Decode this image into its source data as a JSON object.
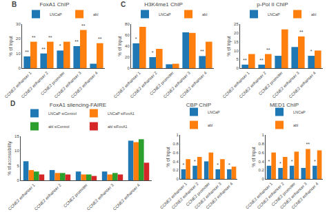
{
  "chart_data": [
    {
      "type": "bar",
      "title": "FoxA1 ChIP",
      "ylabel": "% of Input",
      "categories": [
        "CCNE2 enhancer 1",
        "CCNE2 enhancer 2",
        "CCNE2 promoter",
        "CCNE2 enhancer 3",
        "CCNE2 enhancer 4"
      ],
      "series": [
        {
          "name": "LNCaP",
          "values": [
            8,
            10,
            12,
            15,
            3
          ],
          "annotations": [
            "**",
            "**",
            "*",
            "**",
            null
          ]
        },
        {
          "name": "abl",
          "values": [
            18,
            18,
            18,
            26,
            17
          ],
          "annotations": [
            "**",
            "**",
            null,
            "**",
            "**"
          ]
        }
      ],
      "ylim": [
        0,
        30
      ],
      "yticks": [
        0,
        10,
        20,
        30
      ],
      "legend": "top",
      "annotations": [
        "B"
      ]
    },
    {
      "type": "bar",
      "title": "H3K4me1 ChIP",
      "ylabel": "% of Input",
      "categories": [
        "CCNE2 enhancer 1",
        "CCNE2 enhancer 2",
        "CCNE2 promoter",
        "CCNE2 enhancer 3",
        "CCNE2 enhancer 4"
      ],
      "series": [
        {
          "name": "LNCaP",
          "values": [
            45,
            20,
            7,
            65,
            22
          ],
          "annotations": [
            "*",
            "*",
            null,
            null,
            "**"
          ]
        },
        {
          "name": "abl",
          "values": [
            75,
            35,
            8,
            64,
            48
          ]
        }
      ],
      "ylim": [
        0,
        80
      ],
      "yticks": [
        0,
        20,
        40,
        60,
        80
      ],
      "legend": "top",
      "annotations": [
        "C"
      ]
    },
    {
      "type": "bar",
      "title": "p-Pol II ChIP",
      "ylabel": "% of Input",
      "categories": [
        "CCNE2 enhancer 1",
        "CCNE2 enhancer 2",
        "CCNE2 promoter",
        "CCNE2 enhancer 3",
        "CCNE2 enhancer 4"
      ],
      "series": [
        {
          "name": "LNCaP",
          "values": [
            2,
            2,
            7,
            12,
            7
          ],
          "annotations": [
            "**",
            "**",
            null,
            null,
            "*"
          ]
        },
        {
          "name": "abl",
          "values": [
            8,
            8,
            22,
            18,
            10
          ],
          "annotations": [
            null,
            "**",
            null,
            "**",
            null
          ]
        }
      ],
      "ylim": [
        0,
        25
      ],
      "yticks": [
        0,
        5,
        10,
        15,
        20,
        25
      ],
      "legend": "top"
    },
    {
      "type": "bar",
      "title": "FoxA1 silencing-FAIRE",
      "ylabel": "% of accessibility",
      "categories": [
        "CCNE2 enhancer 1",
        "CCNE2 enhancer 2",
        "CCNE2 promoter",
        "CCNE2 enhancer 3",
        "CCNE2 enhancer 4"
      ],
      "series": [
        {
          "name": "LNCaP siControl",
          "values": [
            6.5,
            3.5,
            3.0,
            3.0,
            13.5
          ]
        },
        {
          "name": "LNCaP siFoxA1",
          "values": [
            3.5,
            2.5,
            2.0,
            2.0,
            13.0
          ]
        },
        {
          "name": "abl siControl",
          "values": [
            3.0,
            2.5,
            2.0,
            2.5,
            14.0
          ]
        },
        {
          "name": "abl siFoxA1",
          "values": [
            2.0,
            2.0,
            1.5,
            2.0,
            6.0
          ]
        }
      ],
      "ylim": [
        0,
        15
      ],
      "yticks": [
        0,
        5,
        10,
        15
      ],
      "legend": "top",
      "annotations": [
        "D"
      ]
    },
    {
      "type": "bar",
      "title": "CBP ChIP",
      "ylabel": "% of Input",
      "categories": [
        "CCNE2 enhancer 1",
        "CCNE2 enhancer 2",
        "CCNE2 promoter",
        "CCNE2 enhancer 3",
        "CCNE2 enhancer 4"
      ],
      "series": [
        {
          "name": "LNCaP",
          "values": [
            0.22,
            0.3,
            0.4,
            0.22,
            0.22
          ],
          "annotations": [
            "*",
            "*",
            null,
            "*",
            "*"
          ]
        },
        {
          "name": "abl",
          "values": [
            0.45,
            0.5,
            0.6,
            0.45,
            0.28
          ]
        }
      ],
      "ylim": [
        0,
        1
      ],
      "yticks": [
        0,
        0.2,
        0.4,
        0.6,
        0.8,
        1
      ],
      "legend": "top"
    },
    {
      "type": "bar",
      "title": "MED1 ChIP",
      "ylabel": "% of Input",
      "categories": [
        "CCNE2 enhancer 1",
        "CCNE2 enhancer 2",
        "CCNE2 promoter",
        "CCNE2 enhancer 3",
        "CCNE2 enhancer 4"
      ],
      "series": [
        {
          "name": "LNCaP",
          "values": [
            0.3,
            0.25,
            0.3,
            0.25,
            0.3
          ],
          "annotations": [
            "*",
            "*",
            "*",
            null,
            "*"
          ]
        },
        {
          "name": "abl",
          "values": [
            0.6,
            0.5,
            0.62,
            0.68,
            0.65
          ],
          "annotations": [
            null,
            null,
            null,
            "**",
            null
          ]
        }
      ],
      "ylim": [
        0,
        1
      ],
      "yticks": [
        0,
        0.2,
        0.4,
        0.6,
        0.8,
        1
      ],
      "legend": "top"
    }
  ]
}
